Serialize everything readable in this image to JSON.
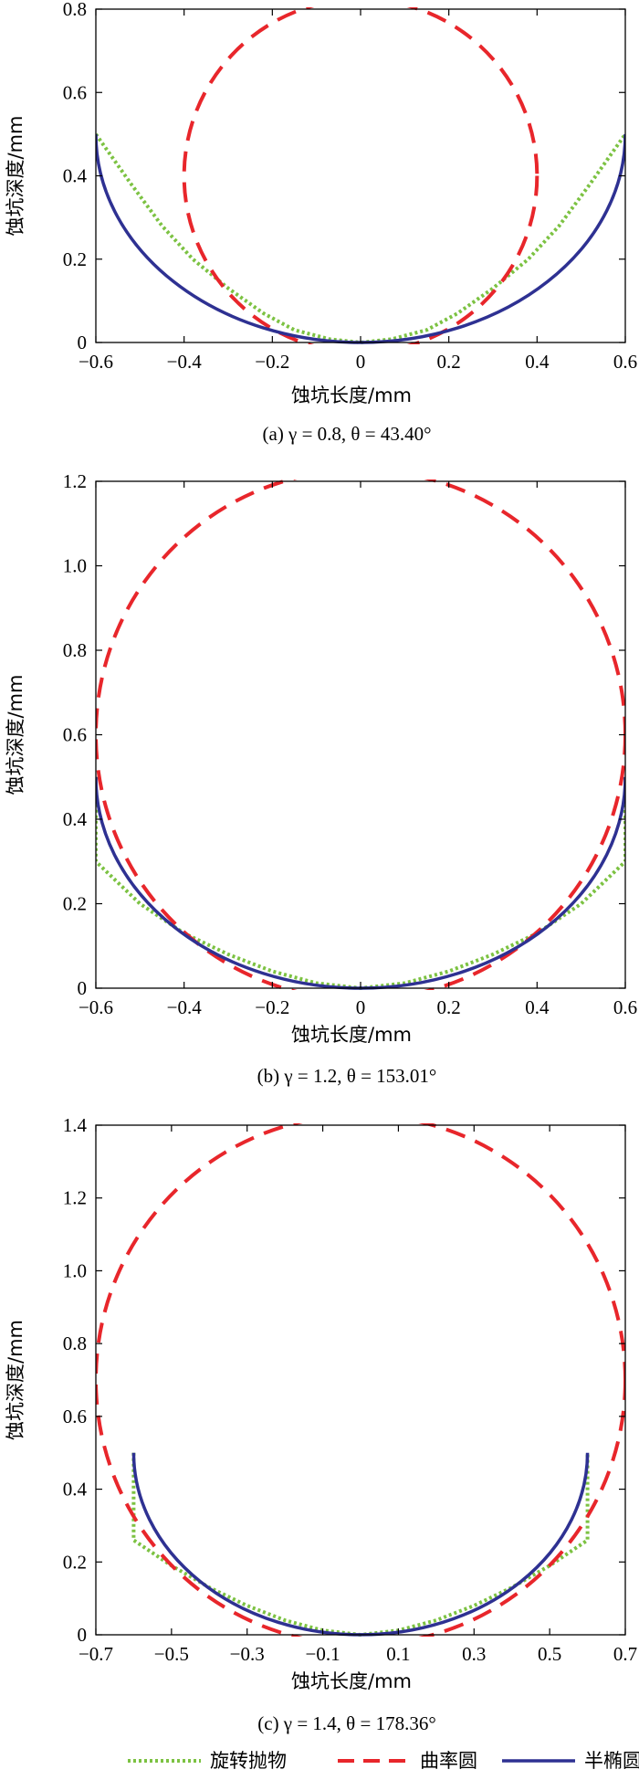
{
  "chart_data": [
    {
      "type": "line",
      "caption": "(a) γ = 0.8, θ = 43.40°",
      "xlabel": "蚀坑长度/mm",
      "ylabel": "蚀坑深度/mm",
      "xlim": [
        -0.6,
        0.6
      ],
      "ylim": [
        0,
        0.8
      ],
      "xticks": [
        "−0.6",
        "−0.4",
        "−0.2",
        "0",
        "0.2",
        "0.4",
        "0.6"
      ],
      "xtick_values": [
        -0.6,
        -0.4,
        -0.2,
        0,
        0.2,
        0.4,
        0.6
      ],
      "yticks": [
        "0",
        "0.2",
        "0.4",
        "0.6",
        "0.8"
      ],
      "ytick_values": [
        0,
        0.2,
        0.4,
        0.6,
        0.8
      ],
      "series": [
        {
          "name": "旋转抛物",
          "x": [
            -0.6,
            -0.52,
            -0.45,
            -0.38,
            -0.3,
            -0.22,
            -0.15,
            -0.07,
            0,
            0.07,
            0.15,
            0.22,
            0.3,
            0.38,
            0.45,
            0.52,
            0.6
          ],
          "y": [
            0.5,
            0.38,
            0.28,
            0.2,
            0.13,
            0.07,
            0.03,
            0.008,
            0,
            0.008,
            0.03,
            0.07,
            0.13,
            0.2,
            0.28,
            0.38,
            0.5
          ]
        },
        {
          "name": "曲率圆",
          "circle": {
            "cx": 0,
            "cy": 0.4,
            "r": 0.4
          }
        },
        {
          "name": "半椭圆",
          "ellipse": {
            "cx": 0,
            "cy": 0.5,
            "rx": 0.6,
            "ry": 0.5
          }
        }
      ]
    },
    {
      "type": "line",
      "caption": "(b) γ = 1.2, θ = 153.01°",
      "xlabel": "蚀坑长度/mm",
      "ylabel": "蚀坑深度/mm",
      "xlim": [
        -0.6,
        0.6
      ],
      "ylim": [
        0,
        1.2
      ],
      "xticks": [
        "−0.6",
        "−0.4",
        "−0.2",
        "0",
        "0.2",
        "0.4",
        "0.6"
      ],
      "xtick_values": [
        -0.6,
        -0.4,
        -0.2,
        0,
        0.2,
        0.4,
        0.6
      ],
      "yticks": [
        "0",
        "0.2",
        "0.4",
        "0.6",
        "0.8",
        "1.0",
        "1.2"
      ],
      "ytick_values": [
        0,
        0.2,
        0.4,
        0.6,
        0.8,
        1.0,
        1.2
      ],
      "series": [
        {
          "name": "旋转抛物",
          "x": [
            -0.6,
            -0.6,
            -0.5,
            -0.4,
            -0.3,
            -0.2,
            -0.1,
            0,
            0.1,
            0.2,
            0.3,
            0.4,
            0.5,
            0.6,
            0.6
          ],
          "y": [
            0.5,
            0.3,
            0.2,
            0.13,
            0.08,
            0.04,
            0.012,
            0,
            0.012,
            0.04,
            0.08,
            0.13,
            0.2,
            0.3,
            0.5
          ]
        },
        {
          "name": "曲率圆",
          "circle": {
            "cx": 0,
            "cy": 0.6,
            "r": 0.6
          }
        },
        {
          "name": "半椭圆",
          "ellipse": {
            "cx": 0,
            "cy": 0.5,
            "rx": 0.6,
            "ry": 0.5
          }
        }
      ]
    },
    {
      "type": "line",
      "caption": "(c) γ = 1.4, θ = 178.36°",
      "xlabel": "蚀坑长度/mm",
      "ylabel": "蚀坑深度/mm",
      "xlim": [
        -0.7,
        0.7
      ],
      "ylim": [
        0,
        1.4
      ],
      "xticks": [
        "−0.7",
        "−0.5",
        "−0.3",
        "−0.1",
        "0.1",
        "0.3",
        "0.5",
        "0.7"
      ],
      "xtick_values": [
        -0.7,
        -0.5,
        -0.3,
        -0.1,
        0.1,
        0.3,
        0.5,
        0.7
      ],
      "yticks": [
        "0",
        "0.2",
        "0.4",
        "0.6",
        "0.8",
        "1.0",
        "1.2",
        "1.4"
      ],
      "ytick_values": [
        0,
        0.2,
        0.4,
        0.6,
        0.8,
        1.0,
        1.2,
        1.4
      ],
      "series": [
        {
          "name": "旋转抛物",
          "x": [
            -0.6,
            -0.6,
            -0.5,
            -0.4,
            -0.3,
            -0.2,
            -0.1,
            0,
            0.1,
            0.2,
            0.3,
            0.4,
            0.5,
            0.6,
            0.6
          ],
          "y": [
            0.5,
            0.26,
            0.19,
            0.13,
            0.08,
            0.04,
            0.012,
            0,
            0.012,
            0.04,
            0.08,
            0.13,
            0.19,
            0.26,
            0.5
          ]
        },
        {
          "name": "曲率圆",
          "circle": {
            "cx": 0,
            "cy": 0.7,
            "r": 0.7
          }
        },
        {
          "name": "半椭圆",
          "ellipse": {
            "cx": 0,
            "cy": 0.5,
            "rx": 0.6,
            "ry": 0.5
          }
        }
      ]
    }
  ],
  "legend": {
    "items": [
      {
        "label": "旋转抛物",
        "color": "#7cc242",
        "style": "dotted"
      },
      {
        "label": "曲率圆",
        "color": "#e8262b",
        "style": "dashed"
      },
      {
        "label": "半椭圆",
        "color": "#2e3192",
        "style": "solid"
      }
    ]
  }
}
